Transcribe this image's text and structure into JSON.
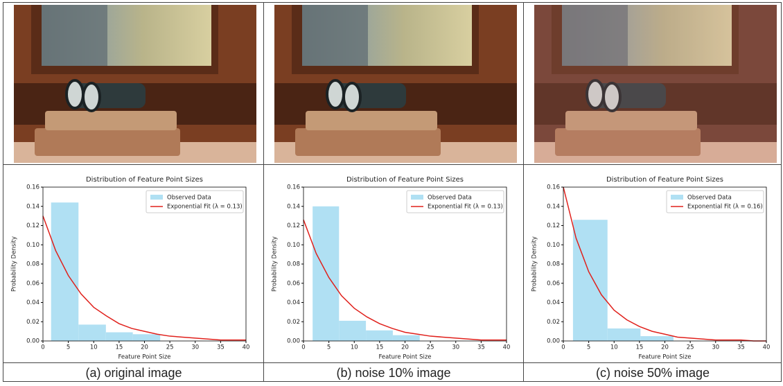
{
  "chart_data": [
    {
      "type": "histogram",
      "title": "Distribution of Feature Point Sizes",
      "xlabel": "Feature Point Size",
      "ylabel": "Probability Density",
      "bins": [
        1.6,
        7,
        12.4,
        17.7,
        23.1
      ],
      "counts": [
        0.144,
        0.017,
        0.009,
        0.007
      ],
      "bar_name": "Observed Data",
      "bar_color": "#b0e0f3",
      "fit": {
        "name": "Exponential Fit (λ = 0.13)",
        "color": "#e0201b",
        "x": [
          0,
          2.5,
          5,
          7.5,
          10,
          12.5,
          15,
          17.5,
          20,
          22.5,
          25,
          27.5,
          30,
          32.5,
          35,
          37.5,
          40
        ],
        "values": [
          0.13,
          0.094,
          0.068,
          0.049,
          0.035,
          0.026,
          0.018,
          0.013,
          0.01,
          0.007,
          0.005,
          0.004,
          0.003,
          0.002,
          0.001,
          0.001,
          0.001
        ]
      },
      "xlim": [
        0,
        40
      ],
      "ylim": [
        0,
        0.16
      ],
      "xticks": [
        0,
        5,
        10,
        15,
        20,
        25,
        30,
        35,
        40
      ],
      "yticks": [
        {
          "value": 0,
          "label": "0.00"
        },
        {
          "value": 0.02,
          "label": "0.02"
        },
        {
          "value": 0.04,
          "label": "0.04"
        },
        {
          "value": 0.06,
          "label": "0.06"
        },
        {
          "value": 0.08,
          "label": "0.08"
        },
        {
          "value": 0.1,
          "label": "0.10"
        },
        {
          "value": 0.12,
          "label": "0.12"
        },
        {
          "value": 0.14,
          "label": "0.14"
        },
        {
          "value": 0.16,
          "label": "0.16"
        }
      ],
      "legend": "upper right"
    },
    {
      "type": "histogram",
      "title": "Distribution of Feature Point Sizes",
      "xlabel": "Feature Point Size",
      "ylabel": "Probability Density",
      "bins": [
        1.8,
        7,
        12.3,
        17.6,
        22.9
      ],
      "counts": [
        0.14,
        0.021,
        0.011,
        0.006
      ],
      "bar_name": "Observed Data",
      "bar_color": "#b0e0f3",
      "fit": {
        "name": "Exponential Fit (λ = 0.13)",
        "color": "#e0201b",
        "x": [
          0,
          2.5,
          5,
          7.5,
          10,
          12.5,
          15,
          17.5,
          20,
          22.5,
          25,
          27.5,
          30,
          32.5,
          35,
          37.5,
          40
        ],
        "values": [
          0.126,
          0.091,
          0.066,
          0.047,
          0.034,
          0.025,
          0.018,
          0.013,
          0.009,
          0.007,
          0.005,
          0.004,
          0.003,
          0.002,
          0.001,
          0.001,
          0.001
        ]
      },
      "xlim": [
        0,
        40
      ],
      "ylim": [
        0,
        0.16
      ],
      "xticks": [
        0,
        5,
        10,
        15,
        20,
        25,
        30,
        35,
        40
      ],
      "yticks": [
        {
          "value": 0,
          "label": "0.00"
        },
        {
          "value": 0.02,
          "label": "0.02"
        },
        {
          "value": 0.04,
          "label": "0.04"
        },
        {
          "value": 0.06,
          "label": "0.06"
        },
        {
          "value": 0.08,
          "label": "0.08"
        },
        {
          "value": 0.1,
          "label": "0.10"
        },
        {
          "value": 0.12,
          "label": "0.12"
        },
        {
          "value": 0.14,
          "label": "0.14"
        },
        {
          "value": 0.16,
          "label": "0.16"
        }
      ],
      "legend": "upper right"
    },
    {
      "type": "histogram",
      "title": "Distribution of Feature Point Sizes",
      "xlabel": "Feature Point Size",
      "ylabel": "Probability Density",
      "bins": [
        1.9,
        8.7,
        15.2,
        21.7
      ],
      "counts": [
        0.126,
        0.013,
        0.005
      ],
      "bar_name": "Observed Data",
      "bar_color": "#b0e0f3",
      "fit": {
        "name": "Exponential Fit (λ = 0.16)",
        "color": "#e0201b",
        "x": [
          0,
          2.5,
          5,
          7.5,
          10,
          12.5,
          15,
          17.5,
          20,
          22.5,
          25,
          27.5,
          30,
          32.5,
          35,
          37.5,
          40
        ],
        "values": [
          0.16,
          0.107,
          0.072,
          0.048,
          0.032,
          0.022,
          0.015,
          0.01,
          0.007,
          0.004,
          0.003,
          0.002,
          0.001,
          0.001,
          0.001,
          0,
          0
        ]
      },
      "xlim": [
        0,
        40
      ],
      "ylim": [
        0,
        0.16
      ],
      "xticks": [
        0,
        5,
        10,
        15,
        20,
        25,
        30,
        35,
        40
      ],
      "yticks": [
        {
          "value": 0,
          "label": "0.00"
        },
        {
          "value": 0.02,
          "label": "0.02"
        },
        {
          "value": 0.04,
          "label": "0.04"
        },
        {
          "value": 0.06,
          "label": "0.06"
        },
        {
          "value": 0.08,
          "label": "0.08"
        },
        {
          "value": 0.1,
          "label": "0.10"
        },
        {
          "value": 0.12,
          "label": "0.12"
        },
        {
          "value": 0.14,
          "label": "0.14"
        },
        {
          "value": 0.16,
          "label": "0.16"
        }
      ],
      "legend": "upper right"
    }
  ],
  "captions": [
    "(a) original image",
    "(b) noise 10% image",
    "(c) noise 50% image"
  ]
}
